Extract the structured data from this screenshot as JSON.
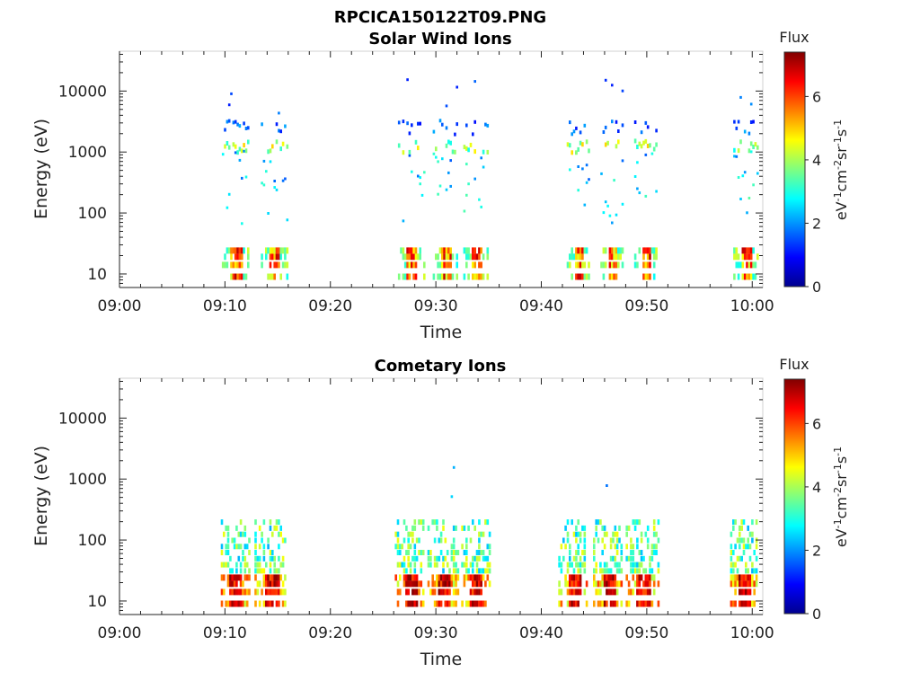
{
  "figure": {
    "title": "RPCICA150122T09.PNG"
  },
  "chart_data": [
    {
      "type": "heatmap",
      "title": "Solar Wind Ions",
      "xlabel": "Time",
      "ylabel": "Energy (eV)",
      "xlim": [
        "09:00",
        "10:01"
      ],
      "ylim": [
        6,
        45000
      ],
      "yscale": "log",
      "x_ticks": [
        "09:00",
        "09:10",
        "09:20",
        "09:30",
        "09:40",
        "09:50",
        "10:00"
      ],
      "y_ticks": [
        10,
        100,
        1000,
        10000
      ],
      "colorbar": {
        "label": "Flux",
        "unit": "eV-1cm-2sr-1s-1",
        "ticks": [
          0,
          2,
          4,
          6
        ],
        "range": [
          0,
          7.4
        ],
        "colormap": "jet"
      },
      "bursts": [
        {
          "t0": 9.7,
          "t1": 12.3
        },
        {
          "t0": 13.4,
          "t1": 15.9
        },
        {
          "t0": 26.4,
          "t1": 28.9
        },
        {
          "t0": 29.7,
          "t1": 32.1
        },
        {
          "t0": 32.6,
          "t1": 35.0
        },
        {
          "t0": 42.4,
          "t1": 44.6
        },
        {
          "t0": 45.6,
          "t1": 47.8
        },
        {
          "t0": 48.8,
          "t1": 51.0
        },
        {
          "t0": 58.2,
          "t1": 60.6
        }
      ]
    },
    {
      "type": "heatmap",
      "title": "Cometary Ions",
      "xlabel": "Time",
      "ylabel": "Energy (eV)",
      "xlim": [
        "09:00",
        "10:01"
      ],
      "ylim": [
        6,
        45000
      ],
      "yscale": "log",
      "x_ticks": [
        "09:00",
        "09:10",
        "09:20",
        "09:30",
        "09:40",
        "09:50",
        "10:00"
      ],
      "y_ticks": [
        10,
        100,
        1000,
        10000
      ],
      "colorbar": {
        "label": "Flux",
        "unit": "eV-1cm-2sr-1s-1",
        "ticks": [
          0,
          2,
          4,
          6
        ],
        "range": [
          0,
          7.4
        ],
        "colormap": "jet"
      },
      "bursts": [
        {
          "t0": 9.6,
          "t1": 12.3
        },
        {
          "t0": 12.8,
          "t1": 15.9
        },
        {
          "t0": 26.1,
          "t1": 29.0
        },
        {
          "t0": 29.2,
          "t1": 32.2
        },
        {
          "t0": 32.4,
          "t1": 35.1
        },
        {
          "t0": 41.6,
          "t1": 44.5
        },
        {
          "t0": 44.9,
          "t1": 47.8
        },
        {
          "t0": 48.0,
          "t1": 51.1
        },
        {
          "t0": 57.9,
          "t1": 60.5
        }
      ]
    }
  ]
}
